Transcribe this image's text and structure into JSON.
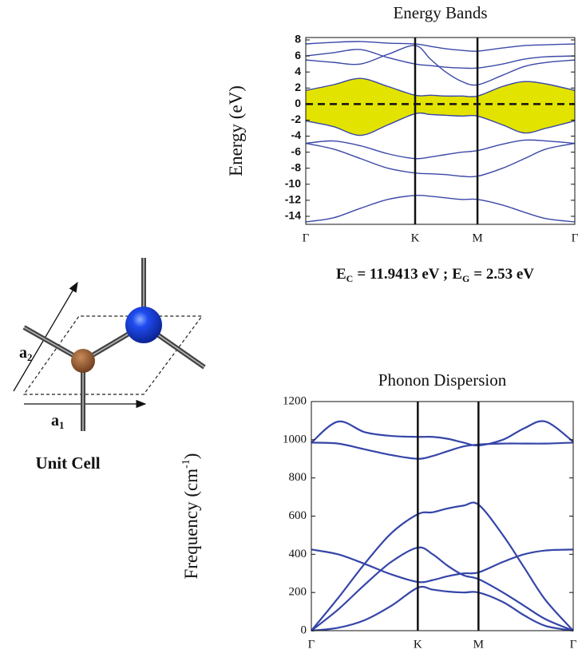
{
  "unit_cell": {
    "title": "Unit Cell",
    "vectors": [
      {
        "symbol": "a",
        "sub": "1"
      },
      {
        "symbol": "a",
        "sub": "2"
      }
    ]
  },
  "annotation": [
    {
      "symbol": "E",
      "sub": "C",
      "text": "= 11.9413 eV ;"
    },
    {
      "symbol": "E",
      "sub": "G",
      "text": "= 2.53 eV"
    }
  ],
  "chart_data": [
    {
      "type": "line",
      "title": "Energy Bands",
      "ylabel": "Energy (eV)",
      "x": [
        0,
        0.25,
        0.5,
        0.75,
        1,
        1.14,
        1.28,
        1.43,
        1.57,
        1.8,
        2.0,
        2.2,
        2.46
      ],
      "xlim": [
        0,
        2.46
      ],
      "xticks": [
        {
          "value": 0,
          "label": "Γ"
        },
        {
          "value": 1,
          "label": "K"
        },
        {
          "value": 1.57,
          "label": "M"
        },
        {
          "value": 2.46,
          "label": "Γ"
        }
      ],
      "ylim": [
        -15,
        8.3
      ],
      "yticks": [
        -14,
        -12,
        -10,
        -8,
        -6,
        -4,
        -2,
        0,
        2,
        4,
        6,
        8
      ],
      "reference_line": 0,
      "fill_between": [
        3,
        4
      ],
      "fill_color": "#e3e300",
      "series": [
        {
          "color": "#3a48a8",
          "values": [
            -14.7,
            -14.2,
            -13.0,
            -11.9,
            -11.4,
            -11.5,
            -11.7,
            -11.9,
            -11.9,
            -12.6,
            -13.5,
            -14.3,
            -14.7
          ]
        },
        {
          "color": "#3a48a8",
          "values": [
            -4.9,
            -5.6,
            -6.8,
            -8.0,
            -8.6,
            -8.7,
            -8.8,
            -9.0,
            -9.0,
            -8.0,
            -6.8,
            -5.6,
            -4.9
          ]
        },
        {
          "color": "#3a48a8",
          "values": [
            -4.9,
            -4.6,
            -5.2,
            -6.2,
            -6.8,
            -6.6,
            -6.3,
            -6.0,
            -5.8,
            -5.0,
            -4.5,
            -4.6,
            -4.9
          ]
        },
        {
          "color": "#3a48a8",
          "values": [
            -2.1,
            -2.8,
            -3.9,
            -2.6,
            -1.2,
            -1.3,
            -1.4,
            -1.5,
            -1.5,
            -2.6,
            -3.6,
            -3.0,
            -2.1
          ]
        },
        {
          "color": "#3a48a8",
          "values": [
            1.7,
            2.4,
            3.2,
            2.2,
            1.1,
            1.1,
            1.0,
            1.0,
            1.0,
            2.2,
            2.8,
            2.5,
            1.7
          ]
        },
        {
          "color": "#3a48a8",
          "values": [
            5.5,
            5.2,
            5.0,
            6.2,
            7.3,
            5.6,
            4.0,
            2.8,
            2.4,
            3.6,
            4.7,
            5.2,
            5.5
          ]
        },
        {
          "color": "#3a48a8",
          "values": [
            6.0,
            6.4,
            6.8,
            5.8,
            5.0,
            4.8,
            4.6,
            4.5,
            4.5,
            5.0,
            5.6,
            5.9,
            6.0
          ]
        },
        {
          "color": "#3a48a8",
          "values": [
            7.5,
            7.7,
            7.8,
            7.6,
            7.5,
            7.2,
            6.9,
            6.7,
            6.6,
            7.0,
            7.3,
            7.4,
            7.5
          ]
        }
      ]
    },
    {
      "type": "line",
      "title": "Phonon Dispersion",
      "ylabel": "Frequency (cm",
      "ylabel_sup": "-1",
      "ylabel_end": ")",
      "x": [
        0,
        0.25,
        0.5,
        0.75,
        1,
        1.14,
        1.28,
        1.43,
        1.57,
        1.8,
        2.0,
        2.2,
        2.46
      ],
      "xlim": [
        0,
        2.46
      ],
      "xticks": [
        {
          "value": 0,
          "label": "Γ"
        },
        {
          "value": 1,
          "label": "K"
        },
        {
          "value": 1.57,
          "label": "M"
        },
        {
          "value": 2.46,
          "label": "Γ"
        }
      ],
      "ylim": [
        0,
        1200
      ],
      "yticks": [
        0,
        200,
        400,
        600,
        800,
        1000,
        1200
      ],
      "series": [
        {
          "color": "#3545a8",
          "values": [
            0,
            15,
            55,
            130,
            225,
            215,
            205,
            200,
            200,
            150,
            80,
            25,
            0
          ]
        },
        {
          "color": "#3545a8",
          "values": [
            0,
            110,
            240,
            360,
            435,
            400,
            340,
            290,
            270,
            200,
            130,
            60,
            0
          ]
        },
        {
          "color": "#3545a8",
          "values": [
            0,
            170,
            350,
            510,
            610,
            620,
            640,
            655,
            660,
            500,
            330,
            160,
            0
          ]
        },
        {
          "color": "#3545a8",
          "values": [
            425,
            400,
            350,
            295,
            255,
            265,
            285,
            300,
            305,
            360,
            400,
            420,
            425
          ]
        },
        {
          "color": "#3545a8",
          "values": [
            985,
            1095,
            1040,
            1020,
            1015,
            1015,
            1005,
            985,
            970,
            1000,
            1060,
            1095,
            990
          ]
        },
        {
          "color": "#3545a8",
          "values": [
            985,
            980,
            950,
            920,
            900,
            915,
            940,
            965,
            975,
            980,
            980,
            980,
            985
          ]
        }
      ]
    }
  ]
}
